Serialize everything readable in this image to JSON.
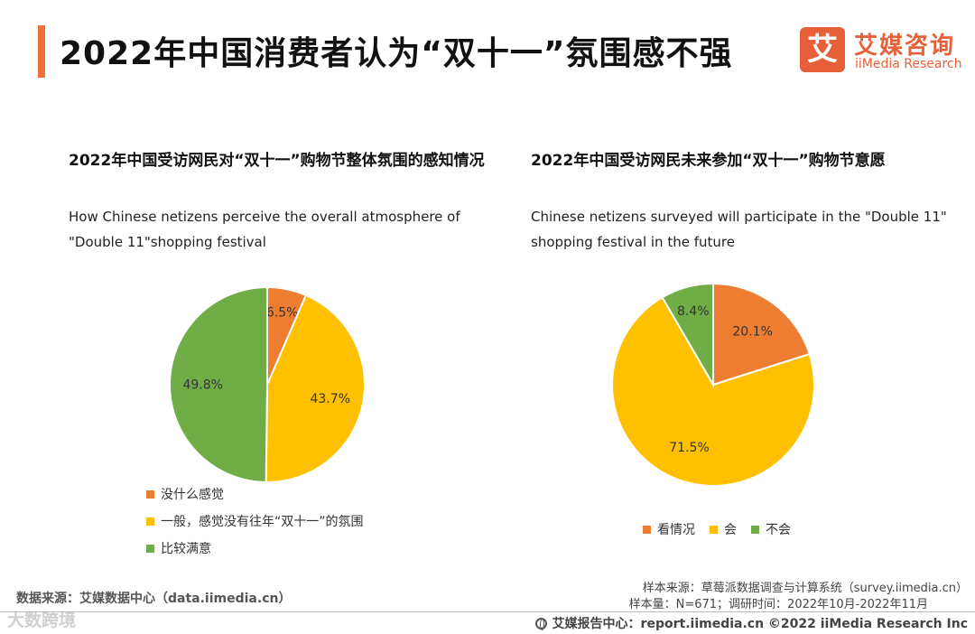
{
  "page": {
    "title": "2022年中国消费者认为“双十一”氛围感不强"
  },
  "logo": {
    "mark": "艾",
    "cn": "艾媒咨询",
    "en": "iiMedia Research"
  },
  "chart_data": [
    {
      "type": "pie",
      "title": "2022年中国受访网民对“双十一”购物节整体氛围的感知情况",
      "subtitle": "How Chinese netizens perceive the overall atmosphere of \"Double 11\"shopping festival",
      "labels": [
        "没什么感觉",
        "一般，感觉没有往年“双十一”的氛围",
        "比较满意"
      ],
      "values": [
        6.5,
        43.7,
        49.8
      ],
      "value_labels": [
        "6.5%",
        "43.7%",
        "49.8%"
      ],
      "colors": [
        "#ed7d31",
        "#ffc000",
        "#70ad47"
      ],
      "legend": "bottom-vertical"
    },
    {
      "type": "pie",
      "title": "2022年中国受访网民未来参加“双十一”购物节意愿",
      "subtitle": "Chinese netizens surveyed will participate in the \"Double 11\" shopping festival in the future",
      "labels": [
        "看情况",
        "会",
        "不会"
      ],
      "values": [
        20.1,
        71.5,
        8.4
      ],
      "value_labels": [
        "20.1%",
        "71.5%",
        "8.4%"
      ],
      "colors": [
        "#ed7d31",
        "#ffc000",
        "#70ad47"
      ],
      "legend": "bottom-horizontal"
    }
  ],
  "footer": {
    "data_source": "数据来源：艾媒数据中心（data.iimedia.cn）",
    "sample_source": "样本来源：草莓派数据调查与计算系统（survey.iimedia.cn）",
    "sample_size": "样本量：N=671；调研时间：2022年10月-2022年11月",
    "report_center": "艾媒报告中心：report.iimedia.cn  ©2022  iiMedia Research  Inc",
    "watermark": "大数跨境"
  }
}
